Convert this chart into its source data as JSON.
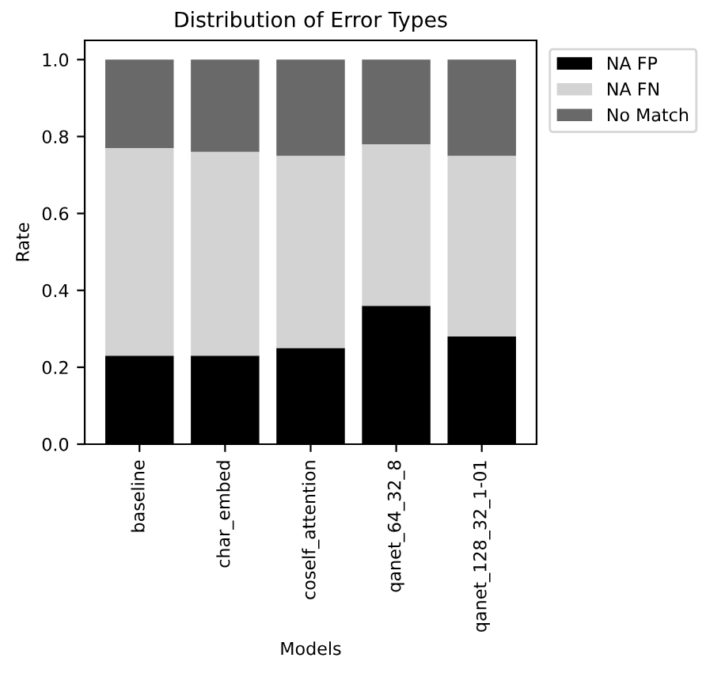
{
  "chart_data": {
    "type": "bar",
    "stacked": true,
    "title": "Distribution of Error Types",
    "xlabel": "Models",
    "ylabel": "Rate",
    "categories": [
      "baseline",
      "char_embed",
      "coself_attention",
      "qanet_64_32_8",
      "qanet_128_32_1-01"
    ],
    "series": [
      {
        "name": "NA FP",
        "color": "#000000",
        "values": [
          0.23,
          0.23,
          0.25,
          0.36,
          0.28
        ]
      },
      {
        "name": "NA FN",
        "color": "#d3d3d3",
        "values": [
          0.54,
          0.53,
          0.5,
          0.42,
          0.47
        ]
      },
      {
        "name": "No Match",
        "color": "#696969",
        "values": [
          0.23,
          0.24,
          0.25,
          0.22,
          0.25
        ]
      }
    ],
    "ylim": [
      0,
      1.05
    ],
    "yticks": [
      {
        "value": 0,
        "label": "0.0"
      },
      {
        "value": 0.2,
        "label": "0.2"
      },
      {
        "value": 0.4,
        "label": "0.4"
      },
      {
        "value": 0.6,
        "label": "0.6"
      },
      {
        "value": 0.8,
        "label": "0.8"
      },
      {
        "value": 1,
        "label": "1.0"
      }
    ],
    "legend": "top right",
    "grid": false
  }
}
